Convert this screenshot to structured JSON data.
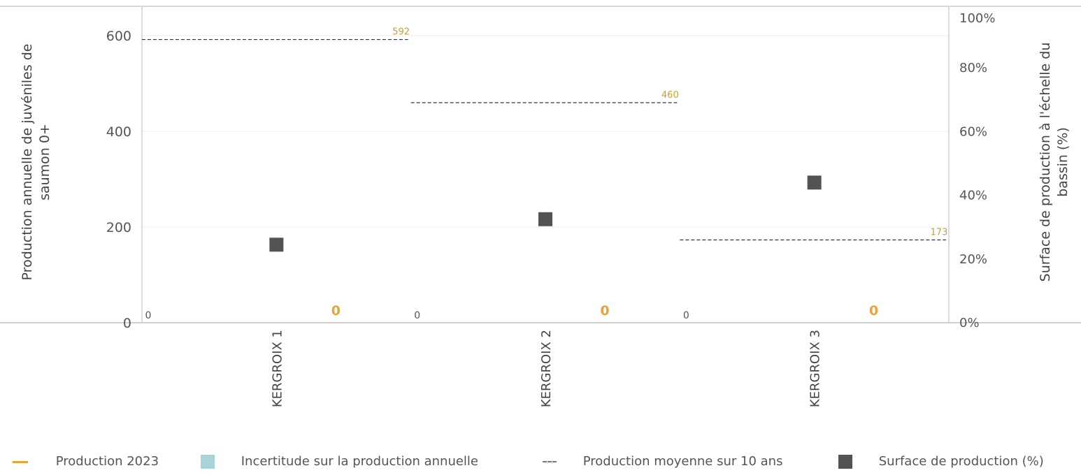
{
  "chart_data": {
    "type": "scatter",
    "categories": [
      "KERGROIX 1",
      "KERGROIX 2",
      "KERGROIX 3"
    ],
    "left_axis": {
      "label": "Production annuelle de juvéniles de saumon 0+",
      "range": [
        0,
        660
      ],
      "ticks": [
        0,
        200,
        400,
        600
      ],
      "tick_labels": [
        "0",
        "200",
        "400",
        "600"
      ]
    },
    "right_axis": {
      "label": "Surface de production à l'échelle du bassin (%)",
      "range": [
        0,
        100
      ],
      "ticks": [
        0,
        20,
        40,
        60,
        80,
        100
      ],
      "tick_labels": [
        "0%",
        "20%",
        "40%",
        "60%",
        "80%",
        "100%"
      ]
    },
    "series": [
      {
        "name": "Production 2023",
        "kind": "marker",
        "color": "#e8a33d",
        "values": [
          0,
          0,
          0
        ],
        "labels": [
          "0",
          "0",
          "0"
        ]
      },
      {
        "name": "Incertitude sur la production annuelle",
        "kind": "band",
        "color": "#a6d4d8",
        "lower": [
          0,
          0,
          0
        ],
        "upper": [
          0,
          0,
          0
        ],
        "labels": [
          "0",
          "0",
          "0"
        ]
      },
      {
        "name": "Production moyenne sur 10 ans",
        "kind": "dashed-line",
        "color": "#333333",
        "label_color": "#c8a030",
        "values": [
          592,
          460,
          173
        ],
        "labels": [
          "592",
          "460",
          "173"
        ]
      },
      {
        "name": "Surface de production (%)",
        "kind": "square",
        "axis": "right",
        "color": "#555255",
        "values": [
          24.5,
          32.5,
          44
        ]
      }
    ],
    "legend_position": "bottom",
    "grid": true
  },
  "legend": {
    "items": [
      {
        "label": "Production 2023",
        "symbol": "—",
        "color": "#e8a33d"
      },
      {
        "label": "Incertitude sur la production annuelle",
        "symbol": "■",
        "color": "#a6d4d8"
      },
      {
        "label": "Production moyenne sur 10 ans",
        "symbol": "---",
        "color": "#666666"
      },
      {
        "label": "Surface de production (%)",
        "symbol": "■",
        "color": "#555255"
      }
    ]
  }
}
